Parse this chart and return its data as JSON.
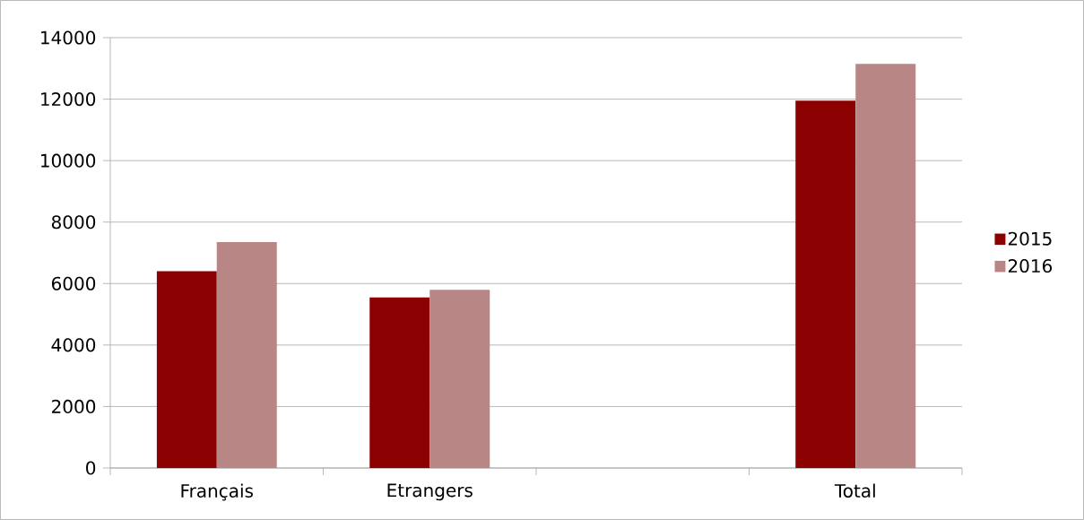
{
  "chart_data": {
    "type": "bar",
    "categories": [
      "Français",
      "Etrangers",
      null,
      "Total"
    ],
    "series": [
      {
        "name": "2015",
        "color": "#8b0000",
        "values": [
          6400,
          5550,
          null,
          11950
        ]
      },
      {
        "name": "2016",
        "color": "#b88785",
        "values": [
          7350,
          5800,
          null,
          13150
        ]
      }
    ],
    "ylim": [
      0,
      14000
    ],
    "yticks": [
      0,
      2000,
      4000,
      6000,
      8000,
      10000,
      12000,
      14000
    ],
    "grid": "y",
    "legend": "right"
  }
}
